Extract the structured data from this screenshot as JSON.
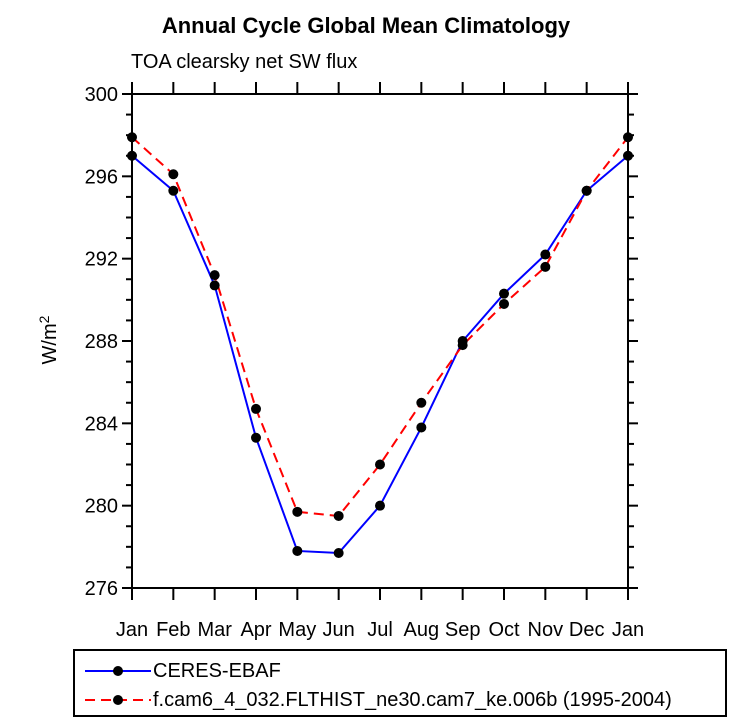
{
  "chart_data": {
    "type": "line",
    "title": "Annual Cycle Global Mean Climatology",
    "subtitle": "TOA clearsky net SW flux",
    "ylabel": "W/m²",
    "ylabel_base": "W/m",
    "ylabel_exponent": "2",
    "categories": [
      "Jan",
      "Feb",
      "Mar",
      "Apr",
      "May",
      "Jun",
      "Jul",
      "Aug",
      "Sep",
      "Oct",
      "Nov",
      "Dec",
      "Jan"
    ],
    "series": [
      {
        "name": "CERES-EBAF",
        "color": "#0000ff",
        "line_style": "solid",
        "marker": "filled-circle",
        "marker_color": "#000000",
        "values": [
          297.0,
          295.3,
          290.7,
          283.3,
          277.8,
          277.7,
          280.0,
          283.8,
          288.0,
          290.3,
          292.2,
          295.3,
          297.0
        ]
      },
      {
        "name": "f.cam6_4_032.FLTHIST_ne30.cam7_ke.006b (1995-2004)",
        "color": "#ff0000",
        "line_style": "dashed",
        "marker": "filled-circle",
        "marker_color": "#000000",
        "values": [
          297.9,
          296.1,
          291.2,
          284.7,
          279.7,
          279.5,
          282.0,
          285.0,
          287.8,
          289.8,
          291.6,
          295.3,
          297.9
        ]
      }
    ],
    "ylim": [
      276,
      300
    ],
    "ytick_major_step": 4,
    "ytick_minor_step": 1,
    "ytick_labels": [
      "276",
      "280",
      "284",
      "288",
      "292",
      "296",
      "300"
    ],
    "grid": false,
    "legend_position": "bottom-left-box",
    "axis_color": "#000000",
    "background_color": "#ffffff"
  }
}
